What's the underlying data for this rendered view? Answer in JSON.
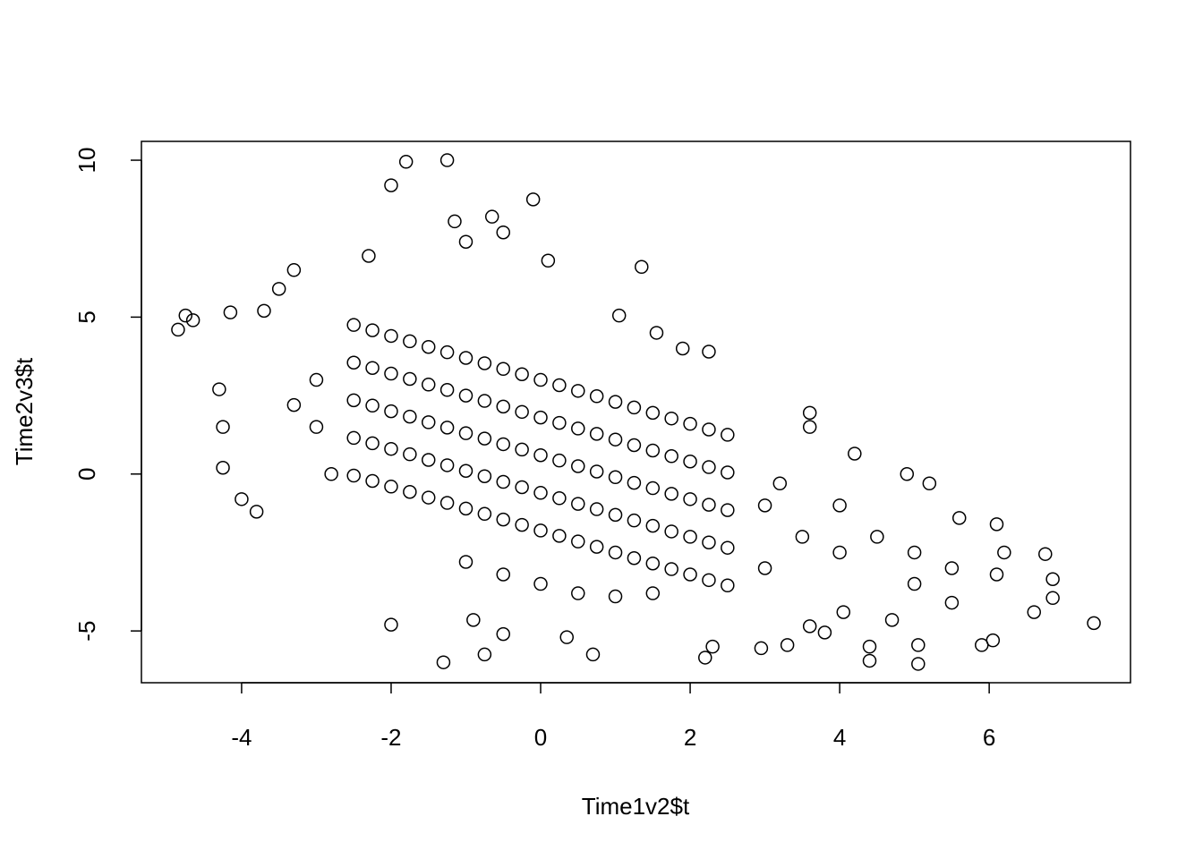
{
  "chart_data": {
    "type": "scatter",
    "x_label": "Time1v2$t",
    "y_label": "Time2v3$t",
    "xlim": [
      -5.34,
      7.89
    ],
    "ylim": [
      -6.65,
      10.6
    ],
    "xticks": [
      -4,
      -2,
      0,
      2,
      4,
      6
    ],
    "yticks": [
      -5,
      0,
      5,
      10
    ],
    "color": "#000000",
    "x": [
      -2.5,
      -2.5,
      -2.5,
      -2.5,
      -2.5,
      -2.25,
      -2.25,
      -2.25,
      -2.25,
      -2.25,
      -2,
      -2,
      -2,
      -2,
      -2,
      -1.75,
      -1.75,
      -1.75,
      -1.75,
      -1.75,
      -1.5,
      -1.5,
      -1.5,
      -1.5,
      -1.5,
      -1.25,
      -1.25,
      -1.25,
      -1.25,
      -1.25,
      -1,
      -1,
      -1,
      -1,
      -1,
      -0.75,
      -0.75,
      -0.75,
      -0.75,
      -0.75,
      -0.5,
      -0.5,
      -0.5,
      -0.5,
      -0.5,
      -0.25,
      -0.25,
      -0.25,
      -0.25,
      -0.25,
      0,
      0,
      0,
      0,
      0,
      0.25,
      0.25,
      0.25,
      0.25,
      0.25,
      0.5,
      0.5,
      0.5,
      0.5,
      0.5,
      0.75,
      0.75,
      0.75,
      0.75,
      0.75,
      1,
      1,
      1,
      1,
      1,
      1.25,
      1.25,
      1.25,
      1.25,
      1.25,
      1.5,
      1.5,
      1.5,
      1.5,
      1.5,
      1.75,
      1.75,
      1.75,
      1.75,
      1.75,
      2,
      2,
      2,
      2,
      2,
      2.25,
      2.25,
      2.25,
      2.25,
      2.25,
      2.5,
      2.5,
      2.5,
      2.5,
      2.5,
      -4.85,
      -4.75,
      -4.65,
      -4.15,
      -4.3,
      -4.25,
      -4.25,
      -4,
      -3.8,
      -1.8,
      -1.25,
      -2,
      -0.1,
      -0.65,
      1.35,
      -1.3,
      0.7,
      -2,
      2.95,
      7.4,
      6.75,
      6.85,
      6.85,
      6.6,
      5.05,
      4.4,
      4.4,
      5.9,
      6.05,
      4.9,
      5.2,
      4.2,
      3.6,
      3.6,
      2.25,
      1.9,
      1.55,
      -3.3,
      -2.3,
      -3.5,
      -3.7,
      -1,
      -0.5,
      -1.15,
      0.1,
      1.05,
      2.2,
      2.3,
      3.3,
      5.05,
      6.1,
      6.2,
      6.1,
      5.6,
      5.5,
      4.7,
      4.05,
      3.6,
      3.8,
      -0.75,
      0.35,
      -0.5,
      -0.9,
      0,
      0.5,
      1,
      -0.5,
      -1,
      1.5,
      -3,
      -3,
      -2.8,
      -3.3,
      3,
      3.5,
      4,
      4.5,
      5,
      5.5,
      3,
      4,
      5,
      3.2
    ],
    "values": [
      -0.05,
      1.15,
      2.35,
      3.55,
      4.75,
      -0.22,
      0.98,
      2.18,
      3.38,
      4.58,
      -0.4,
      0.8,
      2,
      3.2,
      4.4,
      -0.57,
      0.63,
      1.83,
      3.03,
      4.23,
      -0.75,
      0.45,
      1.65,
      2.85,
      4.05,
      -0.92,
      0.28,
      1.48,
      2.68,
      3.88,
      -1.1,
      0.1,
      1.3,
      2.5,
      3.7,
      -1.27,
      -0.07,
      1.13,
      2.33,
      3.53,
      -1.45,
      -0.25,
      0.95,
      2.15,
      3.35,
      -1.62,
      -0.42,
      0.78,
      1.98,
      3.18,
      -1.8,
      -0.6,
      0.6,
      1.8,
      3,
      -1.97,
      -0.77,
      0.43,
      1.63,
      2.83,
      -2.15,
      -0.95,
      0.25,
      1.45,
      2.65,
      -2.32,
      -1.12,
      0.08,
      1.28,
      2.48,
      -2.5,
      -1.3,
      -0.1,
      1.1,
      2.3,
      -2.68,
      -1.48,
      -0.28,
      0.92,
      2.12,
      -2.85,
      -1.65,
      -0.45,
      0.75,
      1.95,
      -3.03,
      -1.83,
      -0.63,
      0.57,
      1.77,
      -3.2,
      -2,
      -0.8,
      0.4,
      1.6,
      -3.38,
      -2.18,
      -0.98,
      0.22,
      1.42,
      -3.55,
      -2.35,
      -1.15,
      0.05,
      1.25,
      4.6,
      5.05,
      4.9,
      5.15,
      2.7,
      1.5,
      0.2,
      -0.8,
      -1.2,
      9.95,
      10,
      9.2,
      8.75,
      8.2,
      6.6,
      -6,
      -5.75,
      -4.8,
      -5.55,
      -4.75,
      -2.55,
      -3.35,
      -3.95,
      -4.4,
      -6.05,
      -5.95,
      -5.5,
      -5.45,
      -5.3,
      0,
      -0.3,
      0.65,
      1.95,
      1.5,
      3.9,
      4,
      4.5,
      6.5,
      6.95,
      5.9,
      5.2,
      7.4,
      7.7,
      8.05,
      6.8,
      5.05,
      -5.85,
      -5.5,
      -5.45,
      -5.45,
      -1.6,
      -2.5,
      -3.2,
      -1.4,
      -4.1,
      -4.65,
      -4.4,
      -4.85,
      -5.05,
      -5.75,
      -5.2,
      -5.1,
      -4.65,
      -3.5,
      -3.8,
      -3.9,
      -3.2,
      -2.8,
      -3.8,
      1.5,
      3,
      0,
      2.2,
      -1,
      -2,
      -2.5,
      -2,
      -2.5,
      -3,
      -3,
      -1,
      -3.5,
      -0.3
    ]
  }
}
